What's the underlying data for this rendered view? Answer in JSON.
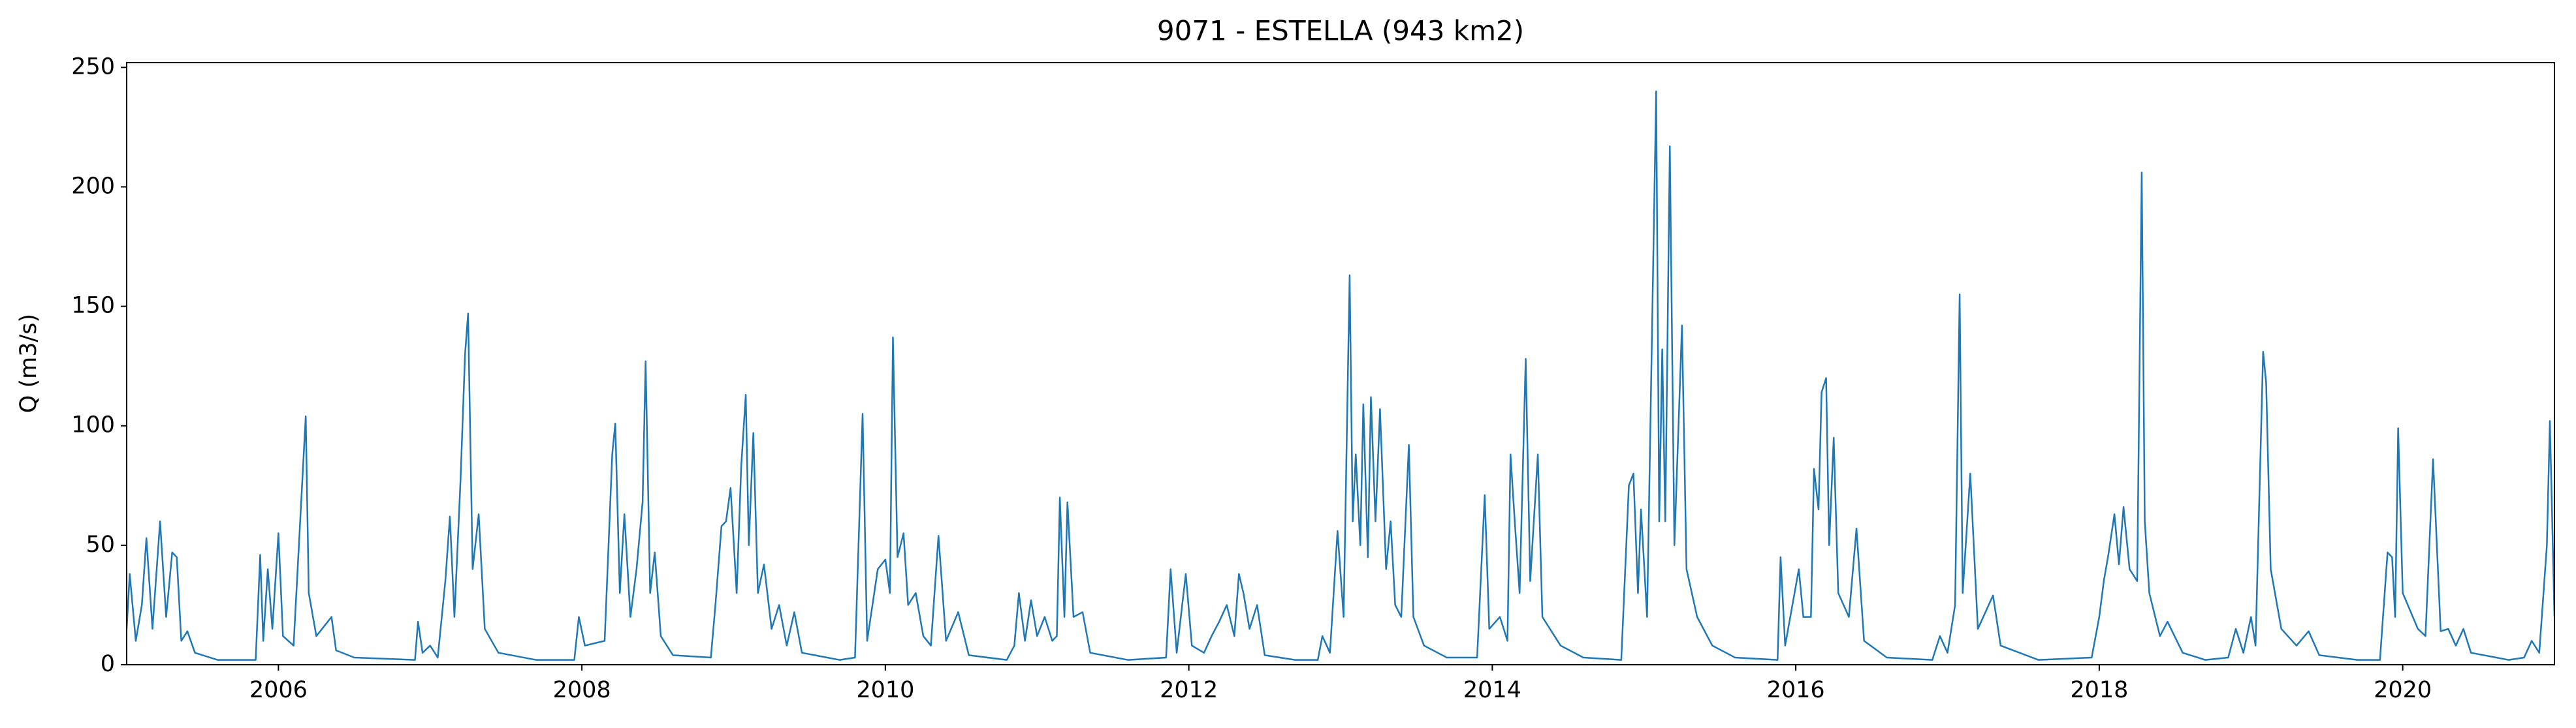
{
  "chart_data": {
    "type": "line",
    "title": "9071 - ESTELLA (943 km2)",
    "y_label": "Q (m3/s)",
    "color": "#1f77b4",
    "xlim": [
      2005.0,
      2021.0
    ],
    "xticks": [
      2006,
      2008,
      2010,
      2012,
      2014,
      2016,
      2018,
      2020
    ],
    "ylim": [
      0,
      252
    ],
    "yticks": [
      0,
      50,
      100,
      150,
      200,
      250
    ],
    "grid": false,
    "x": [
      2005.0,
      2005.02,
      2005.06,
      2005.1,
      2005.13,
      2005.17,
      2005.22,
      2005.26,
      2005.3,
      2005.33,
      2005.36,
      2005.4,
      2005.45,
      2005.6,
      2005.85,
      2005.88,
      2005.9,
      2005.93,
      2005.96,
      2006.0,
      2006.03,
      2006.1,
      2006.18,
      2006.2,
      2006.25,
      2006.35,
      2006.38,
      2006.5,
      2006.9,
      2006.92,
      2006.95,
      2007.0,
      2007.05,
      2007.1,
      2007.13,
      2007.16,
      2007.2,
      2007.23,
      2007.25,
      2007.28,
      2007.32,
      2007.36,
      2007.45,
      2007.7,
      2007.95,
      2007.98,
      2008.02,
      2008.15,
      2008.2,
      2008.22,
      2008.25,
      2008.28,
      2008.32,
      2008.36,
      2008.4,
      2008.42,
      2008.45,
      2008.48,
      2008.52,
      2008.6,
      2008.85,
      2008.88,
      2008.92,
      2008.95,
      2008.98,
      2009.02,
      2009.05,
      2009.08,
      2009.1,
      2009.13,
      2009.16,
      2009.2,
      2009.25,
      2009.3,
      2009.35,
      2009.4,
      2009.45,
      2009.7,
      2009.8,
      2009.85,
      2009.88,
      2009.95,
      2010.0,
      2010.03,
      2010.05,
      2010.08,
      2010.12,
      2010.15,
      2010.2,
      2010.25,
      2010.3,
      2010.35,
      2010.4,
      2010.48,
      2010.55,
      2010.8,
      2010.85,
      2010.88,
      2010.92,
      2010.96,
      2011.0,
      2011.05,
      2011.1,
      2011.13,
      2011.15,
      2011.18,
      2011.2,
      2011.24,
      2011.3,
      2011.35,
      2011.6,
      2011.85,
      2011.88,
      2011.92,
      2011.98,
      2012.02,
      2012.1,
      2012.15,
      2012.2,
      2012.25,
      2012.3,
      2012.33,
      2012.36,
      2012.4,
      2012.45,
      2012.5,
      2012.7,
      2012.85,
      2012.88,
      2012.93,
      2012.98,
      2013.02,
      2013.05,
      2013.06,
      2013.08,
      2013.1,
      2013.13,
      2013.15,
      2013.18,
      2013.2,
      2013.23,
      2013.26,
      2013.3,
      2013.33,
      2013.36,
      2013.4,
      2013.45,
      2013.48,
      2013.55,
      2013.7,
      2013.9,
      2013.95,
      2013.98,
      2014.05,
      2014.1,
      2014.12,
      2014.15,
      2014.18,
      2014.22,
      2014.25,
      2014.3,
      2014.33,
      2014.45,
      2014.6,
      2014.85,
      2014.9,
      2014.93,
      2014.96,
      2014.98,
      2015.02,
      2015.08,
      2015.1,
      2015.12,
      2015.14,
      2015.17,
      2015.2,
      2015.25,
      2015.28,
      2015.35,
      2015.45,
      2015.6,
      2015.88,
      2015.9,
      2015.93,
      2016.02,
      2016.05,
      2016.1,
      2016.12,
      2016.15,
      2016.17,
      2016.2,
      2016.22,
      2016.25,
      2016.28,
      2016.35,
      2016.4,
      2016.45,
      2016.6,
      2016.9,
      2016.95,
      2017.0,
      2017.05,
      2017.08,
      2017.1,
      2017.15,
      2017.2,
      2017.3,
      2017.35,
      2017.6,
      2017.95,
      2018.0,
      2018.03,
      2018.06,
      2018.1,
      2018.13,
      2018.16,
      2018.2,
      2018.25,
      2018.28,
      2018.3,
      2018.33,
      2018.4,
      2018.45,
      2018.55,
      2018.7,
      2018.85,
      2018.9,
      2018.95,
      2019.0,
      2019.03,
      2019.08,
      2019.1,
      2019.13,
      2019.2,
      2019.3,
      2019.38,
      2019.45,
      2019.7,
      2019.85,
      2019.9,
      2019.93,
      2019.95,
      2019.97,
      2020.0,
      2020.1,
      2020.15,
      2020.2,
      2020.25,
      2020.3,
      2020.35,
      2020.4,
      2020.45,
      2020.7,
      2020.8,
      2020.85,
      2020.9,
      2020.95,
      2020.97,
      2021.0
    ],
    "values": [
      15,
      38,
      10,
      25,
      53,
      15,
      60,
      20,
      47,
      45,
      10,
      14,
      5,
      2,
      2,
      46,
      10,
      40,
      15,
      55,
      12,
      8,
      104,
      30,
      12,
      20,
      6,
      3,
      2,
      18,
      5,
      8,
      3,
      35,
      62,
      20,
      77,
      130,
      147,
      40,
      63,
      15,
      5,
      2,
      2,
      20,
      8,
      10,
      88,
      101,
      30,
      63,
      20,
      40,
      68,
      127,
      30,
      47,
      12,
      4,
      3,
      25,
      58,
      60,
      74,
      30,
      83,
      113,
      50,
      97,
      30,
      42,
      15,
      25,
      8,
      22,
      5,
      2,
      3,
      105,
      10,
      40,
      44,
      30,
      137,
      45,
      55,
      25,
      30,
      12,
      8,
      54,
      10,
      22,
      4,
      2,
      8,
      30,
      10,
      27,
      12,
      20,
      10,
      12,
      70,
      20,
      68,
      20,
      22,
      5,
      2,
      3,
      40,
      5,
      38,
      8,
      5,
      12,
      18,
      25,
      12,
      38,
      30,
      15,
      25,
      4,
      2,
      2,
      12,
      5,
      56,
      20,
      128,
      163,
      60,
      88,
      50,
      109,
      45,
      112,
      60,
      107,
      40,
      60,
      25,
      20,
      92,
      20,
      8,
      3,
      3,
      71,
      15,
      20,
      10,
      88,
      58,
      30,
      128,
      35,
      88,
      20,
      8,
      3,
      2,
      75,
      80,
      30,
      65,
      20,
      240,
      60,
      132,
      60,
      217,
      50,
      142,
      40,
      20,
      8,
      3,
      2,
      45,
      8,
      40,
      20,
      20,
      82,
      65,
      114,
      120,
      50,
      95,
      30,
      20,
      57,
      10,
      3,
      2,
      12,
      5,
      25,
      155,
      30,
      80,
      15,
      29,
      8,
      2,
      3,
      20,
      35,
      46,
      63,
      42,
      66,
      40,
      35,
      206,
      60,
      30,
      12,
      18,
      5,
      2,
      3,
      15,
      5,
      20,
      8,
      131,
      118,
      40,
      15,
      8,
      14,
      4,
      2,
      2,
      47,
      45,
      20,
      99,
      30,
      15,
      12,
      86,
      14,
      15,
      8,
      15,
      5,
      2,
      3,
      10,
      5,
      50,
      102,
      20
    ]
  }
}
